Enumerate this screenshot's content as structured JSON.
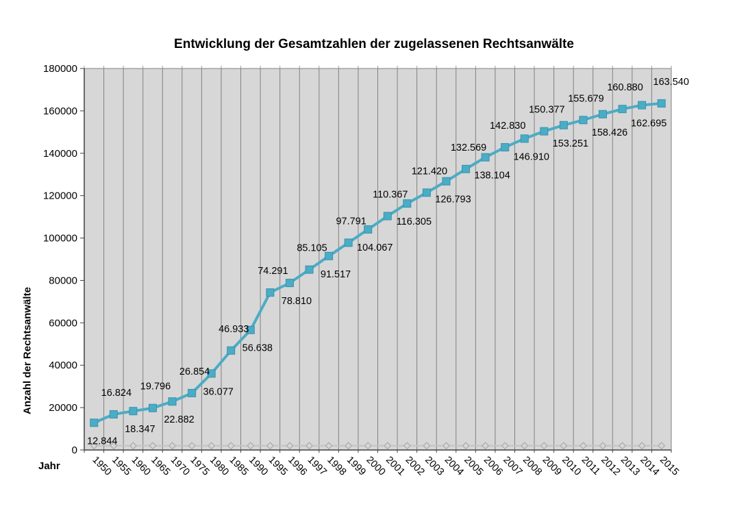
{
  "chart_data": {
    "type": "line",
    "title": "Entwicklung der Gesamtzahlen der zugelassenen Rechtsanwälte",
    "xlabel": "Jahr",
    "ylabel": "Anzahl der Rechtsanwälte",
    "ylim": [
      0,
      180000
    ],
    "y_ticks": [
      0,
      20000,
      40000,
      60000,
      80000,
      100000,
      120000,
      140000,
      160000,
      180000
    ],
    "grid": "vertical-only",
    "legend": "none",
    "x_labels_rotated_deg": 45,
    "categories": [
      "1950",
      "1955",
      "1960",
      "1965",
      "1970",
      "1975",
      "1980",
      "1985",
      "1990",
      "1995",
      "1996",
      "1997",
      "1998",
      "1999",
      "2000",
      "2001",
      "2002",
      "2003",
      "2004",
      "2005",
      "2006",
      "2007",
      "2008",
      "2009",
      "2010",
      "2011",
      "2012",
      "2013",
      "2014",
      "2015"
    ],
    "series": [
      {
        "id": "zugelassene-rechtsanwaelte",
        "marker": "square",
        "values": [
          12844,
          16824,
          18347,
          19796,
          22882,
          26854,
          36077,
          46933,
          56638,
          74291,
          78810,
          85105,
          91517,
          97791,
          104067,
          110367,
          116305,
          121420,
          126793,
          132569,
          138104,
          142830,
          146910,
          150377,
          153251,
          155679,
          158426,
          160880,
          162695,
          163540
        ],
        "data_labels": [
          "12.844",
          "16.824",
          "18.347",
          "19.796",
          "22.882",
          "26.854",
          "36.077",
          "46.933",
          "56.638",
          "74.291",
          "78.810",
          "85.105",
          "91.517",
          "97.791",
          "104.067",
          "110.367",
          "116.305",
          "121.420",
          "126.793",
          "132.569",
          "138.104",
          "142.830",
          "146.910",
          "150.377",
          "153.251",
          "155.679",
          "158.426",
          "160.880",
          "162.695",
          "163.540"
        ],
        "label_placement": "alternating-below-above"
      },
      {
        "id": "secondary-flat-series-unlabeled",
        "marker": "diamond-outline",
        "values_estimated": true,
        "values": [
          2000,
          2000,
          2000,
          2000,
          2000,
          2000,
          2000,
          2000,
          2000,
          2000,
          2000,
          2000,
          2000,
          2000,
          2000,
          2000,
          2000,
          2000,
          2000,
          2000,
          2000,
          2000,
          2000,
          2000,
          2000,
          2000,
          2000,
          2000,
          2000,
          2000
        ],
        "data_labels": null
      }
    ],
    "colors": {
      "accent": "#4bacc6",
      "accent_edge": "#3792ac",
      "secondary": "#c4c4c4",
      "secondary_marker_edge": "#ababab",
      "plot_bg": "#d7d7d7",
      "gridline": "#808080",
      "top_tick": "#9b9b9b",
      "axis": "#404040",
      "text": "#000000",
      "page_bg": "#ffffff"
    }
  }
}
